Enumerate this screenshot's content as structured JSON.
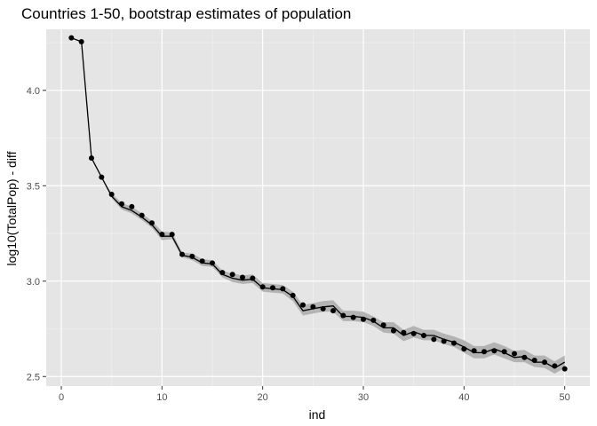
{
  "chart_data": {
    "type": "line",
    "title": "Countries 1-50, bootstrap estimates of population",
    "xlabel": "ind",
    "ylabel": "log10(TotalPop) - diff",
    "xlim": [
      -1.5,
      52.5
    ],
    "ylim": [
      2.45,
      4.32
    ],
    "x_ticks": [
      0,
      10,
      20,
      30,
      40,
      50
    ],
    "y_ticks": [
      2.5,
      3.0,
      3.5,
      4.0
    ],
    "x_tick_labels": [
      "0",
      "10",
      "20",
      "30",
      "40",
      "50"
    ],
    "y_tick_labels": [
      "2.5",
      "3.0",
      "3.5",
      "4.0"
    ],
    "grid": true,
    "background": "#e5e5e5",
    "grid_color": "#ffffff",
    "line_color": "#000000",
    "ribbon_color": "#b3b3b3",
    "x": [
      1,
      2,
      3,
      4,
      5,
      6,
      7,
      8,
      9,
      10,
      11,
      12,
      13,
      14,
      15,
      16,
      17,
      18,
      19,
      20,
      21,
      22,
      23,
      24,
      25,
      26,
      27,
      28,
      29,
      30,
      31,
      32,
      33,
      34,
      35,
      36,
      37,
      38,
      39,
      40,
      41,
      42,
      43,
      44,
      45,
      46,
      47,
      48,
      49,
      50
    ],
    "points": [
      4.275,
      4.255,
      3.645,
      3.545,
      3.455,
      3.405,
      3.39,
      3.345,
      3.305,
      3.245,
      3.245,
      3.14,
      3.13,
      3.105,
      3.095,
      3.045,
      3.035,
      3.02,
      3.015,
      2.97,
      2.965,
      2.96,
      2.925,
      2.875,
      2.865,
      2.855,
      2.845,
      2.82,
      2.81,
      2.8,
      2.795,
      2.77,
      2.74,
      2.73,
      2.725,
      2.715,
      2.695,
      2.685,
      2.675,
      2.645,
      2.635,
      2.63,
      2.635,
      2.63,
      2.62,
      2.6,
      2.585,
      2.575,
      2.555,
      2.54
    ],
    "line": [
      4.275,
      4.255,
      3.645,
      3.545,
      3.445,
      3.39,
      3.37,
      3.335,
      3.295,
      3.235,
      3.235,
      3.135,
      3.125,
      3.095,
      3.09,
      3.035,
      3.015,
      3.005,
      3.01,
      2.965,
      2.96,
      2.955,
      2.92,
      2.845,
      2.855,
      2.865,
      2.87,
      2.815,
      2.815,
      2.81,
      2.79,
      2.755,
      2.755,
      2.715,
      2.735,
      2.715,
      2.715,
      2.695,
      2.68,
      2.655,
      2.625,
      2.625,
      2.645,
      2.625,
      2.6,
      2.605,
      2.575,
      2.575,
      2.545,
      2.575
    ],
    "lower": [
      4.275,
      4.255,
      3.645,
      3.545,
      3.435,
      3.375,
      3.355,
      3.32,
      3.28,
      3.215,
      3.22,
      3.125,
      3.11,
      3.08,
      3.075,
      3.02,
      2.995,
      2.985,
      2.99,
      2.945,
      2.94,
      2.935,
      2.895,
      2.82,
      2.83,
      2.84,
      2.84,
      2.79,
      2.79,
      2.785,
      2.765,
      2.73,
      2.725,
      2.685,
      2.705,
      2.69,
      2.69,
      2.67,
      2.655,
      2.625,
      2.595,
      2.595,
      2.615,
      2.595,
      2.575,
      2.575,
      2.55,
      2.545,
      2.515,
      2.545
    ],
    "upper": [
      4.275,
      4.255,
      3.645,
      3.545,
      3.46,
      3.41,
      3.39,
      3.355,
      3.315,
      3.26,
      3.255,
      3.15,
      3.145,
      3.115,
      3.11,
      3.055,
      3.04,
      3.03,
      3.035,
      2.99,
      2.985,
      2.98,
      2.945,
      2.875,
      2.885,
      2.895,
      2.9,
      2.845,
      2.845,
      2.84,
      2.815,
      2.785,
      2.785,
      2.745,
      2.765,
      2.745,
      2.745,
      2.725,
      2.71,
      2.69,
      2.66,
      2.66,
      2.68,
      2.66,
      2.635,
      2.64,
      2.61,
      2.61,
      2.58,
      2.61
    ]
  }
}
